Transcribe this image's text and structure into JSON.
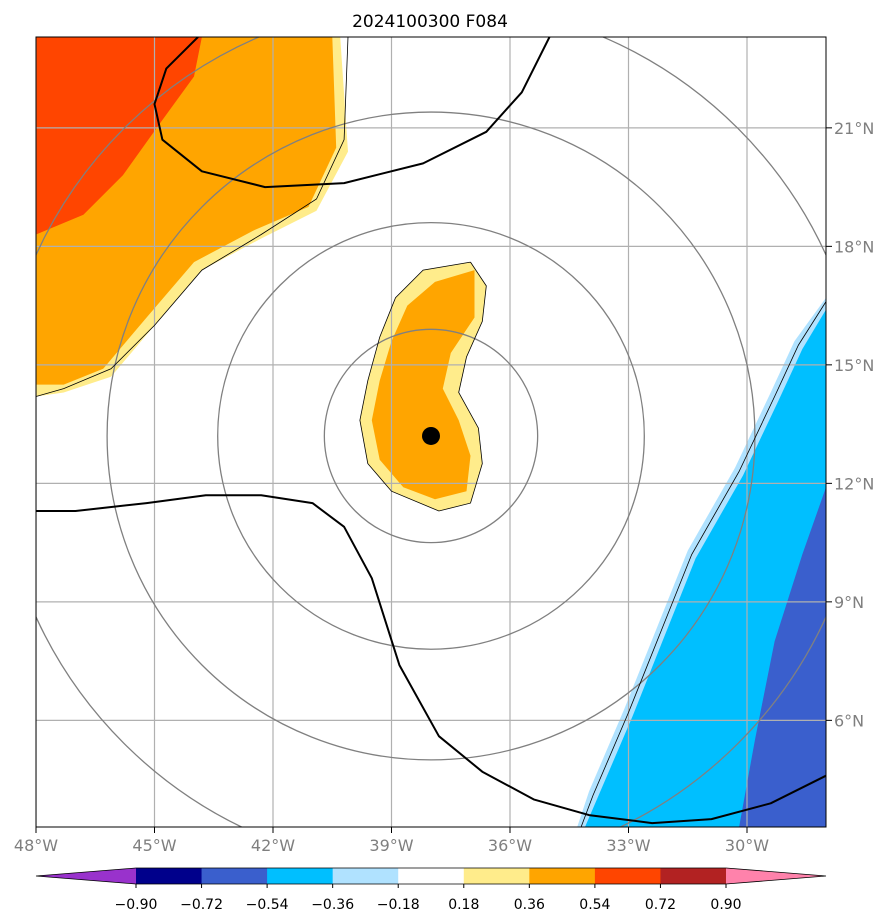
{
  "chart_data": {
    "type": "heatmap",
    "title": "2024100300 F084",
    "xlabel": "",
    "ylabel": "",
    "xlim": [
      -48,
      -28
    ],
    "ylim": [
      3.3,
      23.3
    ],
    "x_ticks": [
      -48,
      -45,
      -42,
      -39,
      -36,
      -33,
      -30
    ],
    "x_tick_labels": [
      "48°W",
      "45°W",
      "42°W",
      "39°W",
      "36°W",
      "33°W",
      "30°W"
    ],
    "y_ticks": [
      6,
      9,
      12,
      15,
      18,
      21
    ],
    "y_tick_labels": [
      "6°N",
      "9°N",
      "12°N",
      "15°N",
      "18°N",
      "21°N"
    ],
    "grid": true,
    "center": {
      "lon": -38.0,
      "lat": 13.2
    },
    "range_rings_deg": [
      2.7,
      5.4,
      8.2,
      11.0
    ],
    "colorbar": {
      "levels": [
        -0.9,
        -0.72,
        -0.54,
        -0.36,
        -0.18,
        0.18,
        0.36,
        0.54,
        0.72,
        0.9
      ],
      "tick_labels": [
        "−0.90",
        "−0.72",
        "−0.54",
        "−0.36",
        "−0.18",
        "0.18",
        "0.36",
        "0.54",
        "0.72",
        "0.90"
      ],
      "colors": [
        "#9932cc",
        "#00008b",
        "#3a5fcd",
        "#00bfff",
        "#b0e2ff",
        "#ffffff",
        "#ffec8b",
        "#ffa500",
        "#ff4500",
        "#b22222",
        "#ff82ab"
      ],
      "extend": "both"
    },
    "filled_regions": [
      {
        "level": "0.18 to 0.36",
        "color": "#ffec8b",
        "points": [
          [
            -48,
            23.3
          ],
          [
            -40.3,
            23.3
          ],
          [
            -40.1,
            20.4
          ],
          [
            -40.9,
            18.9
          ],
          [
            -42.3,
            18.2
          ],
          [
            -43.8,
            17.4
          ],
          [
            -45.0,
            16.0
          ],
          [
            -46.1,
            14.7
          ],
          [
            -47.3,
            14.3
          ],
          [
            -48,
            14.2
          ]
        ]
      },
      {
        "level": "0.36 to 0.54",
        "color": "#ffa500",
        "points": [
          [
            -48,
            23.3
          ],
          [
            -40.5,
            23.3
          ],
          [
            -40.4,
            20.5
          ],
          [
            -41.1,
            19.0
          ],
          [
            -42.5,
            18.4
          ],
          [
            -44.0,
            17.6
          ],
          [
            -45.2,
            16.2
          ],
          [
            -46.3,
            14.9
          ],
          [
            -47.3,
            14.5
          ],
          [
            -48,
            14.5
          ]
        ]
      },
      {
        "level": "0.54 to 0.72",
        "color": "#ff4500",
        "points": [
          [
            -48,
            23.3
          ],
          [
            -43.8,
            23.3
          ],
          [
            -44.0,
            22.3
          ],
          [
            -44.8,
            21.2
          ],
          [
            -45.8,
            19.8
          ],
          [
            -46.8,
            18.8
          ],
          [
            -48,
            18.3
          ]
        ]
      },
      {
        "level": "0.18 to 0.36",
        "color": "#ffec8b",
        "points": [
          [
            -37.0,
            17.6
          ],
          [
            -38.2,
            17.4
          ],
          [
            -38.9,
            16.7
          ],
          [
            -39.3,
            15.7
          ],
          [
            -39.6,
            14.6
          ],
          [
            -39.8,
            13.6
          ],
          [
            -39.6,
            12.5
          ],
          [
            -39.0,
            11.8
          ],
          [
            -37.8,
            11.3
          ],
          [
            -37.0,
            11.5
          ],
          [
            -36.7,
            12.5
          ],
          [
            -36.8,
            13.4
          ],
          [
            -37.3,
            14.3
          ],
          [
            -37.1,
            15.2
          ],
          [
            -36.7,
            16.1
          ],
          [
            -36.6,
            17.0
          ]
        ]
      },
      {
        "level": "0.36 to 0.54",
        "color": "#ffa500",
        "points": [
          [
            -36.9,
            17.4
          ],
          [
            -37.9,
            17.1
          ],
          [
            -38.6,
            16.5
          ],
          [
            -39.0,
            15.6
          ],
          [
            -39.3,
            14.6
          ],
          [
            -39.5,
            13.6
          ],
          [
            -39.3,
            12.6
          ],
          [
            -38.7,
            11.9
          ],
          [
            -37.9,
            11.6
          ],
          [
            -37.1,
            11.8
          ],
          [
            -37.0,
            12.7
          ],
          [
            -37.3,
            13.6
          ],
          [
            -37.7,
            14.4
          ],
          [
            -37.5,
            15.3
          ],
          [
            -36.9,
            16.2
          ]
        ]
      },
      {
        "level": "-0.36 to -0.18",
        "color": "#b0e2ff",
        "points": [
          [
            -28,
            16.7
          ],
          [
            -28.8,
            15.6
          ],
          [
            -29.4,
            14.3
          ],
          [
            -30.3,
            12.4
          ],
          [
            -31.5,
            10.3
          ],
          [
            -32.3,
            8.3
          ],
          [
            -33.1,
            6.3
          ],
          [
            -34.0,
            4.2
          ],
          [
            -34.3,
            3.3
          ],
          [
            -28,
            3.3
          ]
        ]
      },
      {
        "level": "-0.54 to -0.36",
        "color": "#00bfff",
        "points": [
          [
            -28,
            16.4
          ],
          [
            -28.6,
            15.4
          ],
          [
            -29.2,
            14.1
          ],
          [
            -30.1,
            12.2
          ],
          [
            -31.3,
            10.1
          ],
          [
            -32.1,
            8.1
          ],
          [
            -32.9,
            6.1
          ],
          [
            -33.8,
            4.0
          ],
          [
            -34.1,
            3.3
          ],
          [
            -28,
            3.3
          ]
        ]
      },
      {
        "level": "-0.72 to -0.54",
        "color": "#3a5fcd",
        "points": [
          [
            -28,
            11.9
          ],
          [
            -28.6,
            10.2
          ],
          [
            -29.3,
            8.0
          ],
          [
            -29.8,
            5.5
          ],
          [
            -30.2,
            3.3
          ],
          [
            -28,
            3.3
          ]
        ]
      }
    ],
    "thin_contours": [
      [
        [
          -48,
          14.2
        ],
        [
          -47.3,
          14.4
        ],
        [
          -46.1,
          14.9
        ],
        [
          -45.0,
          16.0
        ],
        [
          -43.8,
          17.4
        ],
        [
          -42.3,
          18.3
        ],
        [
          -40.9,
          19.2
        ],
        [
          -40.2,
          20.7
        ],
        [
          -40.1,
          23.3
        ]
      ],
      [
        [
          -37.0,
          17.6
        ],
        [
          -38.2,
          17.4
        ],
        [
          -38.9,
          16.7
        ],
        [
          -39.3,
          15.7
        ],
        [
          -39.6,
          14.6
        ],
        [
          -39.8,
          13.6
        ],
        [
          -39.6,
          12.5
        ],
        [
          -39.0,
          11.8
        ],
        [
          -37.8,
          11.3
        ],
        [
          -37.0,
          11.5
        ],
        [
          -36.7,
          12.5
        ],
        [
          -36.8,
          13.4
        ],
        [
          -37.3,
          14.3
        ],
        [
          -37.1,
          15.2
        ],
        [
          -36.7,
          16.1
        ],
        [
          -36.6,
          17.0
        ],
        [
          -37.0,
          17.6
        ]
      ],
      [
        [
          -28,
          16.6
        ],
        [
          -28.7,
          15.5
        ],
        [
          -29.3,
          14.2
        ],
        [
          -30.2,
          12.3
        ],
        [
          -31.4,
          10.2
        ],
        [
          -32.2,
          8.2
        ],
        [
          -33.0,
          6.2
        ],
        [
          -33.9,
          4.1
        ],
        [
          -34.2,
          3.3
        ]
      ]
    ],
    "thick_contours": [
      [
        [
          -43.9,
          23.3
        ],
        [
          -44.7,
          22.5
        ],
        [
          -45.0,
          21.6
        ],
        [
          -44.8,
          20.7
        ],
        [
          -43.8,
          19.9
        ],
        [
          -42.2,
          19.5
        ],
        [
          -40.2,
          19.6
        ],
        [
          -38.2,
          20.1
        ],
        [
          -36.6,
          20.9
        ],
        [
          -35.7,
          21.9
        ],
        [
          -35.0,
          23.3
        ]
      ],
      [
        [
          -48,
          11.3
        ],
        [
          -47.0,
          11.3
        ],
        [
          -45.2,
          11.5
        ],
        [
          -43.7,
          11.7
        ],
        [
          -42.3,
          11.7
        ],
        [
          -41.0,
          11.5
        ],
        [
          -40.2,
          10.9
        ],
        [
          -39.5,
          9.6
        ],
        [
          -38.8,
          7.4
        ],
        [
          -37.8,
          5.6
        ],
        [
          -36.7,
          4.7
        ],
        [
          -35.4,
          4.0
        ],
        [
          -34.0,
          3.6
        ],
        [
          -32.4,
          3.4
        ],
        [
          -30.9,
          3.5
        ],
        [
          -29.4,
          3.9
        ],
        [
          -28,
          4.6
        ]
      ]
    ]
  }
}
